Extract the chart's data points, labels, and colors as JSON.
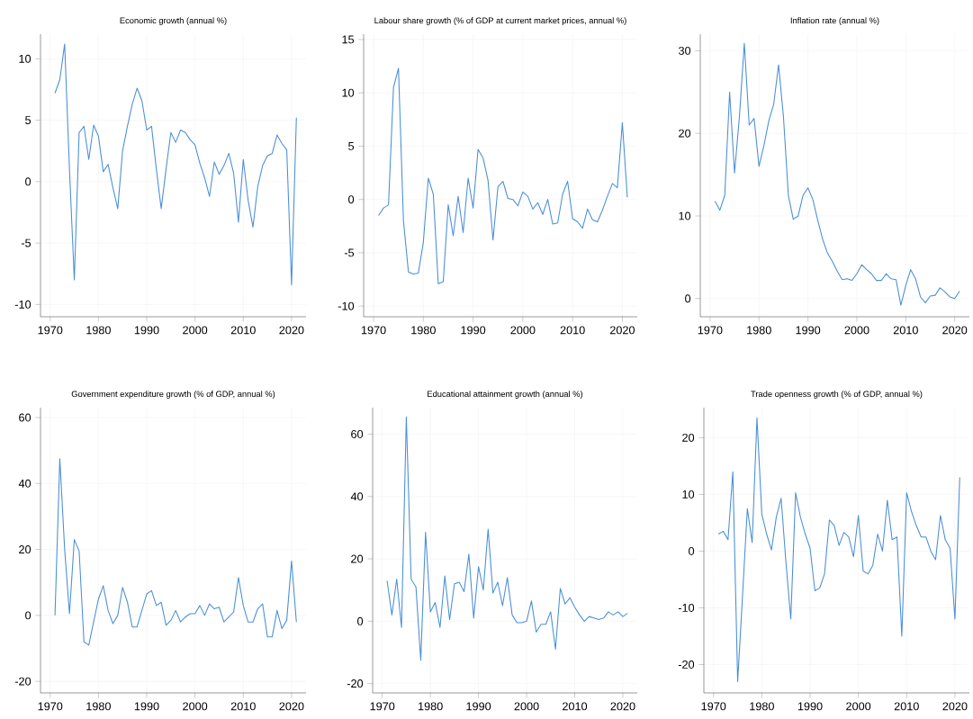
{
  "chart_data": [
    {
      "type": "line",
      "title": "Economic growth (annual %)",
      "color": "#4a8fd6",
      "grid": true,
      "xlim": [
        1968,
        2023
      ],
      "ylim": [
        -11,
        12
      ],
      "xticks": [
        1970,
        1980,
        1990,
        2000,
        2010,
        2020
      ],
      "yticks": [
        -10,
        -5,
        0,
        5,
        10
      ],
      "x": [
        1971,
        1972,
        1973,
        1974,
        1975,
        1976,
        1977,
        1978,
        1979,
        1980,
        1981,
        1982,
        1983,
        1984,
        1985,
        1986,
        1987,
        1988,
        1989,
        1990,
        1991,
        1992,
        1993,
        1994,
        1995,
        1996,
        1997,
        1998,
        1999,
        2000,
        2001,
        2002,
        2003,
        2004,
        2005,
        2006,
        2007,
        2008,
        2009,
        2010,
        2011,
        2012,
        2013,
        2014,
        2015,
        2016,
        2017,
        2018,
        2019,
        2020,
        2021
      ],
      "values": [
        7.2,
        8.3,
        11.2,
        1.0,
        -8.0,
        4.0,
        4.5,
        1.8,
        4.6,
        3.7,
        0.8,
        1.4,
        -0.5,
        -2.2,
        2.5,
        4.5,
        6.3,
        7.6,
        6.6,
        4.2,
        4.5,
        1.0,
        -2.2,
        1.0,
        4.0,
        3.2,
        4.2,
        4.0,
        3.4,
        3.0,
        1.5,
        0.3,
        -1.2,
        1.6,
        0.6,
        1.3,
        2.3,
        0.7,
        -3.3,
        1.8,
        -1.5,
        -3.7,
        -0.4,
        1.3,
        2.1,
        2.3,
        3.8,
        3.1,
        2.6,
        -8.4,
        5.2
      ]
    },
    {
      "type": "line",
      "title": "Labour share growth (% of GDP at current market prices, annual %)",
      "color": "#4a8fd6",
      "grid": true,
      "xlim": [
        1968,
        2023
      ],
      "ylim": [
        -11,
        15.5
      ],
      "xticks": [
        1970,
        1980,
        1990,
        2000,
        2010,
        2020
      ],
      "yticks": [
        -10,
        -5,
        0,
        5,
        10,
        15
      ],
      "x": [
        1971,
        1972,
        1973,
        1974,
        1975,
        1976,
        1977,
        1978,
        1979,
        1980,
        1981,
        1982,
        1983,
        1984,
        1985,
        1986,
        1987,
        1988,
        1989,
        1990,
        1991,
        1992,
        1993,
        1994,
        1995,
        1996,
        1997,
        1998,
        1999,
        2000,
        2001,
        2002,
        2003,
        2004,
        2005,
        2006,
        2007,
        2008,
        2009,
        2010,
        2011,
        2012,
        2013,
        2014,
        2015,
        2016,
        2017,
        2018,
        2019,
        2020,
        2021
      ],
      "values": [
        -1.5,
        -0.8,
        -0.5,
        10.5,
        12.3,
        -2.0,
        -6.8,
        -7.0,
        -6.9,
        -4.0,
        2.0,
        0.5,
        -7.9,
        -7.7,
        -0.5,
        -3.4,
        0.3,
        -3.1,
        2.0,
        -0.8,
        4.7,
        3.9,
        1.8,
        -3.8,
        1.2,
        1.7,
        0.1,
        0.0,
        -0.6,
        0.7,
        0.3,
        -0.9,
        -0.3,
        -1.4,
        0.0,
        -2.3,
        -2.2,
        0.5,
        1.7,
        -1.8,
        -2.1,
        -2.7,
        -0.9,
        -1.9,
        -2.1,
        -1.0,
        0.3,
        1.5,
        1.1,
        7.2,
        0.2
      ]
    },
    {
      "type": "line",
      "title": "Inflation rate (annual %)",
      "color": "#4a8fd6",
      "grid": true,
      "xlim": [
        1968,
        2023
      ],
      "ylim": [
        -2.2,
        32
      ],
      "xticks": [
        1970,
        1980,
        1990,
        2000,
        2010,
        2020
      ],
      "yticks": [
        0,
        10,
        20,
        30
      ],
      "x": [
        1971,
        1972,
        1973,
        1974,
        1975,
        1976,
        1977,
        1978,
        1979,
        1980,
        1981,
        1982,
        1983,
        1984,
        1985,
        1986,
        1987,
        1988,
        1989,
        1990,
        1991,
        1992,
        1993,
        1994,
        1995,
        1996,
        1997,
        1998,
        1999,
        2000,
        2001,
        2002,
        2003,
        2004,
        2005,
        2006,
        2007,
        2008,
        2009,
        2010,
        2011,
        2012,
        2013,
        2014,
        2015,
        2016,
        2017,
        2018,
        2019,
        2020,
        2021
      ],
      "values": [
        11.8,
        10.7,
        12.5,
        25.0,
        15.2,
        22.0,
        30.9,
        21.0,
        21.8,
        16.0,
        18.5,
        21.5,
        23.5,
        28.3,
        22.0,
        12.5,
        9.6,
        10.0,
        12.5,
        13.4,
        12.0,
        9.5,
        7.2,
        5.5,
        4.5,
        3.3,
        2.3,
        2.4,
        2.2,
        3.0,
        4.1,
        3.5,
        3.0,
        2.2,
        2.2,
        3.0,
        2.4,
        2.3,
        -0.8,
        1.6,
        3.5,
        2.4,
        0.2,
        -0.5,
        0.3,
        0.4,
        1.3,
        0.8,
        0.2,
        0.0,
        0.9
      ]
    },
    {
      "type": "line",
      "title": "Government expenditure growth (% of GDP, annual %)",
      "color": "#4a8fd6",
      "grid": true,
      "xlim": [
        1968,
        2023
      ],
      "ylim": [
        -23.5,
        63
      ],
      "xticks": [
        1970,
        1980,
        1990,
        2000,
        2010,
        2020
      ],
      "yticks": [
        -20,
        0,
        20,
        40,
        60
      ],
      "x": [
        1971,
        1972,
        1973,
        1974,
        1975,
        1976,
        1977,
        1978,
        1979,
        1980,
        1981,
        1982,
        1983,
        1984,
        1985,
        1986,
        1987,
        1988,
        1989,
        1990,
        1991,
        1992,
        1993,
        1994,
        1995,
        1996,
        1997,
        1998,
        1999,
        2000,
        2001,
        2002,
        2003,
        2004,
        2005,
        2006,
        2007,
        2008,
        2009,
        2010,
        2011,
        2012,
        2013,
        2014,
        2015,
        2016,
        2017,
        2018,
        2019,
        2020,
        2021
      ],
      "values": [
        0,
        47.5,
        20,
        0.5,
        23,
        19.5,
        -8,
        -9,
        -2,
        5,
        9,
        1.5,
        -2.5,
        0,
        8.5,
        4,
        -3.5,
        -3.5,
        1.5,
        6.5,
        7.5,
        3,
        4,
        -3,
        -1.5,
        1.5,
        -2,
        -0.5,
        0.5,
        0.5,
        3,
        0,
        3.5,
        2,
        2.5,
        -2,
        -0.5,
        1,
        11.5,
        3,
        -2,
        -2,
        2,
        3.5,
        -6.5,
        -6.5,
        1.5,
        -4,
        -1.5,
        16.5,
        -2
      ]
    },
    {
      "type": "line",
      "title": "Educational attainment growth (annual %)",
      "color": "#4a8fd6",
      "grid": true,
      "xlim": [
        1968,
        2023
      ],
      "ylim": [
        -23,
        68.5
      ],
      "xticks": [
        1970,
        1980,
        1990,
        2000,
        2010,
        2020
      ],
      "yticks": [
        -20,
        0,
        20,
        40,
        60
      ],
      "x": [
        1971,
        1972,
        1973,
        1974,
        1975,
        1976,
        1977,
        1978,
        1979,
        1980,
        1981,
        1982,
        1983,
        1984,
        1985,
        1986,
        1987,
        1988,
        1989,
        1990,
        1991,
        1992,
        1993,
        1994,
        1995,
        1996,
        1997,
        1998,
        1999,
        2000,
        2001,
        2002,
        2003,
        2004,
        2005,
        2006,
        2007,
        2008,
        2009,
        2010,
        2011,
        2012,
        2013,
        2014,
        2015,
        2016,
        2017,
        2018,
        2019,
        2020,
        2021
      ],
      "values": [
        13,
        2,
        13.5,
        -2,
        65.5,
        13.5,
        11,
        -12.5,
        28.5,
        3,
        6,
        -2,
        14.5,
        0.5,
        12,
        12.5,
        9.5,
        21.5,
        1,
        17.5,
        10,
        29.5,
        9,
        12.5,
        5,
        14,
        2,
        -0.5,
        -0.5,
        0,
        6.5,
        -3.5,
        -1,
        -1,
        3,
        -9,
        10.5,
        5.5,
        7.5,
        4.5,
        2,
        0,
        1.5,
        1,
        0.5,
        1,
        3,
        2,
        3,
        1.5,
        2.5
      ]
    },
    {
      "type": "line",
      "title": "Trade openness growth (% of GDP, annual %)",
      "color": "#4a8fd6",
      "grid": true,
      "xlim": [
        1968,
        2023
      ],
      "ylim": [
        -25,
        25.3
      ],
      "xticks": [
        1970,
        1980,
        1990,
        2000,
        2010,
        2020
      ],
      "yticks": [
        -20,
        -10,
        0,
        10,
        20
      ],
      "x": [
        1971,
        1972,
        1973,
        1974,
        1975,
        1976,
        1977,
        1978,
        1979,
        1980,
        1981,
        1982,
        1983,
        1984,
        1985,
        1986,
        1987,
        1988,
        1989,
        1990,
        1991,
        1992,
        1993,
        1994,
        1995,
        1996,
        1997,
        1998,
        1999,
        2000,
        2001,
        2002,
        2003,
        2004,
        2005,
        2006,
        2007,
        2008,
        2009,
        2010,
        2011,
        2012,
        2013,
        2014,
        2015,
        2016,
        2017,
        2018,
        2019,
        2020,
        2021
      ],
      "values": [
        3,
        3.5,
        2,
        14,
        -23,
        -8,
        7.5,
        1.5,
        23.5,
        6.5,
        3,
        0.2,
        6,
        9.3,
        -2,
        -12,
        10.3,
        6,
        3,
        0.5,
        -7,
        -6.5,
        -4,
        5.5,
        4.5,
        1,
        3.3,
        2.5,
        -1,
        6.3,
        -3.5,
        -4,
        -2.5,
        3,
        0,
        9,
        2,
        2.5,
        -15,
        10.3,
        7,
        4.5,
        2.5,
        2.5,
        0,
        -1.5,
        6.3,
        2,
        0.5,
        -12,
        13
      ]
    }
  ]
}
